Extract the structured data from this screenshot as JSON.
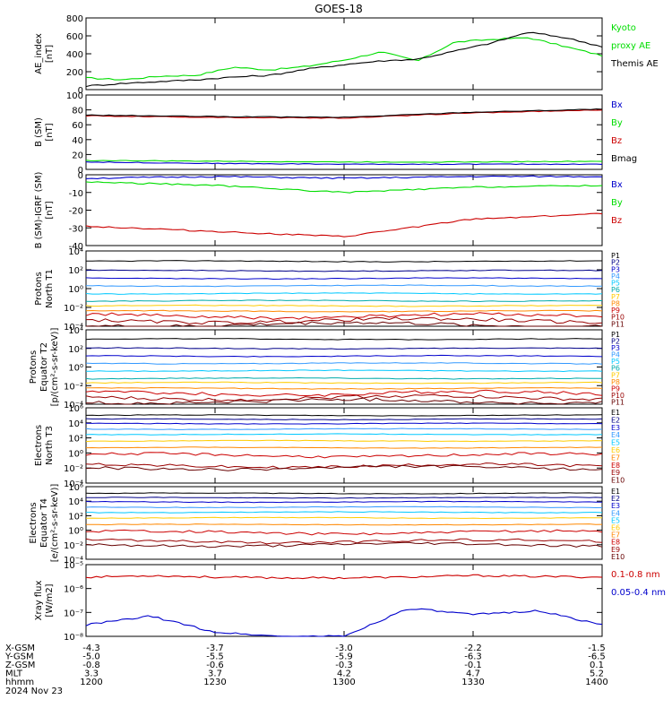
{
  "title": "GOES-18",
  "colors": {
    "black": "#000000",
    "green": "#00dd00",
    "blue": "#0000cc",
    "red": "#cc0000",
    "cyan": "#00c8ff",
    "lightblue": "#3399ff",
    "yellow": "#ffcc00",
    "orange": "#ff8800",
    "darkred": "#990000",
    "navy": "#000088",
    "teal": "#00aaaa"
  },
  "panels": [
    {
      "ylabel": [
        "AE_index",
        "[nT]"
      ],
      "ticks": [
        "800",
        "600",
        "400",
        "200",
        "0"
      ],
      "legend": [
        {
          "text": "Kyoto",
          "color": "#00dd00"
        },
        {
          "text": "proxy AE",
          "color": "#00dd00"
        },
        {
          "text": "Themis AE",
          "color": "#000000"
        }
      ]
    },
    {
      "ylabel": [
        "B (SM)",
        "[nT]"
      ],
      "ticks": [
        "100",
        "80",
        "60",
        "40",
        "20",
        "0"
      ],
      "legend": [
        {
          "text": "Bx",
          "color": "#0000cc"
        },
        {
          "text": "By",
          "color": "#00dd00"
        },
        {
          "text": "Bz",
          "color": "#cc0000"
        },
        {
          "text": "Bmag",
          "color": "#000000"
        }
      ]
    },
    {
      "ylabel": [
        "B (SM)-IGRF (SM)",
        "[nT]"
      ],
      "ticks": [
        "0",
        "-10",
        "-20",
        "-30",
        "-40"
      ],
      "legend": [
        {
          "text": "Bx",
          "color": "#0000cc"
        },
        {
          "text": "By",
          "color": "#00dd00"
        },
        {
          "text": "Bz",
          "color": "#cc0000"
        }
      ]
    },
    {
      "ylabel": [
        "Protons",
        "North T1"
      ],
      "ticks": [
        "10⁴",
        "10²",
        "10⁰",
        "10⁻²",
        "10⁻⁴"
      ],
      "legend": [
        {
          "text": "P1",
          "color": "#000000"
        },
        {
          "text": "P2",
          "color": "#000088"
        },
        {
          "text": "P3",
          "color": "#0000cc"
        },
        {
          "text": "P4",
          "color": "#3399ff"
        },
        {
          "text": "P5",
          "color": "#00c8ff"
        },
        {
          "text": "P6",
          "color": "#00aaaa"
        },
        {
          "text": "P7",
          "color": "#ffcc00"
        },
        {
          "text": "P8",
          "color": "#ff8800"
        },
        {
          "text": "P9",
          "color": "#cc0000"
        },
        {
          "text": "P10",
          "color": "#990000"
        },
        {
          "text": "P11",
          "color": "#660000"
        }
      ]
    },
    {
      "ylabel": [
        "Protons",
        "Equator T2",
        "[p/(cm²-s-sr-keV)]"
      ],
      "ticks": [
        "10⁴",
        "10²",
        "10⁰",
        "10⁻²",
        "10⁻⁴"
      ],
      "legend": [
        {
          "text": "P1",
          "color": "#000000"
        },
        {
          "text": "P2",
          "color": "#000088"
        },
        {
          "text": "P3",
          "color": "#0000cc"
        },
        {
          "text": "P4",
          "color": "#3399ff"
        },
        {
          "text": "P5",
          "color": "#00c8ff"
        },
        {
          "text": "P6",
          "color": "#00aaaa"
        },
        {
          "text": "P7",
          "color": "#ffcc00"
        },
        {
          "text": "P8",
          "color": "#ff8800"
        },
        {
          "text": "P9",
          "color": "#cc0000"
        },
        {
          "text": "P10",
          "color": "#990000"
        },
        {
          "text": "P11",
          "color": "#660000"
        }
      ]
    },
    {
      "ylabel": [
        "Electrons",
        "North T3"
      ],
      "ticks": [
        "10⁶",
        "10⁴",
        "10²",
        "10⁰",
        "10⁻²",
        "10⁻⁴"
      ],
      "legend": [
        {
          "text": "E1",
          "color": "#000000"
        },
        {
          "text": "E2",
          "color": "#000088"
        },
        {
          "text": "E3",
          "color": "#0000cc"
        },
        {
          "text": "E4",
          "color": "#3399ff"
        },
        {
          "text": "E5",
          "color": "#00c8ff"
        },
        {
          "text": "E6",
          "color": "#ffcc00"
        },
        {
          "text": "E7",
          "color": "#ff8800"
        },
        {
          "text": "E8",
          "color": "#cc0000"
        },
        {
          "text": "E9",
          "color": "#990000"
        },
        {
          "text": "E10",
          "color": "#660000"
        }
      ]
    },
    {
      "ylabel": [
        "Electrons",
        "Equator T4",
        "[e/(cm²-s-sr-keV)]"
      ],
      "ticks": [
        "10⁶",
        "10⁴",
        "10²",
        "10⁰",
        "10⁻²",
        "10⁻⁴"
      ],
      "legend": [
        {
          "text": "E1",
          "color": "#000000"
        },
        {
          "text": "E2",
          "color": "#000088"
        },
        {
          "text": "E3",
          "color": "#0000cc"
        },
        {
          "text": "E4",
          "color": "#3399ff"
        },
        {
          "text": "E5",
          "color": "#00c8ff"
        },
        {
          "text": "E6",
          "color": "#ffcc00"
        },
        {
          "text": "E7",
          "color": "#ff8800"
        },
        {
          "text": "E8",
          "color": "#cc0000"
        },
        {
          "text": "E9",
          "color": "#990000"
        },
        {
          "text": "E10",
          "color": "#660000"
        }
      ]
    },
    {
      "ylabel": [
        "Xray flux",
        "[W/m2]"
      ],
      "ticks": [
        "10⁻⁵",
        "10⁻⁶",
        "10⁻⁷",
        "10⁻⁸"
      ],
      "legend": [
        {
          "text": "0.1-0.8 nm",
          "color": "#cc0000"
        },
        {
          "text": "0.05-0.4 nm",
          "color": "#0000cc"
        }
      ]
    }
  ],
  "footer": {
    "rows": [
      {
        "label": "X-GSM",
        "values": [
          "-4.3",
          "-3.7",
          "-3.0",
          "-2.2",
          "-1.5"
        ]
      },
      {
        "label": "Y-GSM",
        "values": [
          "-5.0",
          "-5.5",
          "-5.9",
          "-6.3",
          "-6.5"
        ]
      },
      {
        "label": "Z-GSM",
        "values": [
          "-0.8",
          "-0.6",
          "-0.3",
          "-0.1",
          "0.1"
        ]
      },
      {
        "label": "MLT",
        "values": [
          "3.3",
          "3.7",
          "4.2",
          "4.7",
          "5.2"
        ]
      },
      {
        "label": "hhmm",
        "values": [
          "1200",
          "1230",
          "1300",
          "1330",
          "1400"
        ]
      }
    ],
    "date": "2024 Nov 23"
  },
  "chart_data": [
    {
      "type": "line",
      "title": "GOES-18",
      "ylabel": "AE_index [nT]",
      "ylim": [
        0,
        800
      ],
      "x": [
        "1200",
        "1210",
        "1220",
        "1230",
        "1240",
        "1250",
        "1300",
        "1310",
        "1320",
        "1330",
        "1340",
        "1345",
        "1350",
        "1355",
        "1400"
      ],
      "series": [
        {
          "name": "Kyoto proxy AE",
          "values": [
            130,
            110,
            150,
            160,
            250,
            220,
            260,
            330,
            420,
            320,
            530,
            560,
            580,
            480,
            380
          ]
        },
        {
          "name": "Themis AE",
          "values": [
            40,
            70,
            90,
            110,
            140,
            160,
            230,
            280,
            320,
            340,
            430,
            520,
            640,
            580,
            480
          ]
        }
      ]
    },
    {
      "type": "line",
      "ylabel": "B (SM) [nT]",
      "ylim": [
        0,
        100
      ],
      "x": [
        "1200",
        "1230",
        "1300",
        "1330",
        "1400"
      ],
      "series": [
        {
          "name": "Bx",
          "values": [
            10,
            8,
            7,
            7,
            7
          ]
        },
        {
          "name": "By",
          "values": [
            12,
            11,
            10,
            10,
            11
          ]
        },
        {
          "name": "Bz",
          "values": [
            72,
            70,
            69,
            76,
            80
          ]
        },
        {
          "name": "Bmag",
          "values": [
            73,
            71,
            70,
            77,
            81
          ]
        }
      ]
    },
    {
      "type": "line",
      "ylabel": "B (SM)-IGRF (SM) [nT]",
      "ylim": [
        -40,
        0
      ],
      "x": [
        "1200",
        "1230",
        "1300",
        "1330",
        "1400"
      ],
      "series": [
        {
          "name": "Bx",
          "values": [
            -2,
            -1,
            -2,
            -1,
            -1
          ]
        },
        {
          "name": "By",
          "values": [
            -4,
            -6,
            -10,
            -7,
            -6
          ]
        },
        {
          "name": "Bz",
          "values": [
            -29,
            -32,
            -35,
            -25,
            -22
          ]
        }
      ]
    },
    {
      "type": "line",
      "ylabel": "Protons North T1",
      "yscale": "log",
      "ylim": [
        0.0001,
        10000
      ],
      "series": [
        {
          "name": "P1",
          "level": 800
        },
        {
          "name": "P2",
          "level": 80
        },
        {
          "name": "P3",
          "level": 12
        },
        {
          "name": "P4",
          "level": 2
        },
        {
          "name": "P5",
          "level": 0.3
        },
        {
          "name": "P6",
          "level": 0.05
        },
        {
          "name": "P7",
          "level": 0.015
        },
        {
          "name": "P8",
          "level": 0.004
        },
        {
          "name": "P9",
          "level": 0.0012
        },
        {
          "name": "P10",
          "level": 0.0004
        },
        {
          "name": "P11",
          "level": 0.00015
        }
      ]
    },
    {
      "type": "line",
      "ylabel": "Protons Equator T2 [p/(cm²-s-sr-keV)]",
      "yscale": "log",
      "ylim": [
        0.0001,
        10000
      ],
      "series": [
        {
          "name": "P1",
          "level": 1000
        },
        {
          "name": "P2",
          "level": 100
        },
        {
          "name": "P3",
          "level": 15
        },
        {
          "name": "P4",
          "level": 2.5
        },
        {
          "name": "P5",
          "level": 0.4
        },
        {
          "name": "P6",
          "level": 0.06
        },
        {
          "name": "P7",
          "level": 0.02
        },
        {
          "name": "P8",
          "level": 0.005
        },
        {
          "name": "P9",
          "level": 0.0015
        },
        {
          "name": "P10",
          "level": 0.0005
        },
        {
          "name": "P11",
          "level": 0.0002
        }
      ]
    },
    {
      "type": "line",
      "ylabel": "Electrons North T3",
      "yscale": "log",
      "ylim": [
        0.0001,
        1000000
      ],
      "series": [
        {
          "name": "E1",
          "level": 100000
        },
        {
          "name": "E2",
          "level": 30000
        },
        {
          "name": "E3",
          "level": 8000
        },
        {
          "name": "E4",
          "level": 1500
        },
        {
          "name": "E5",
          "level": 300
        },
        {
          "name": "E6",
          "level": 40
        },
        {
          "name": "E7",
          "level": 5
        },
        {
          "name": "E8",
          "level": 0.5
        },
        {
          "name": "E9",
          "level": 0.02
        },
        {
          "name": "E10",
          "level": 0.01
        }
      ]
    },
    {
      "type": "line",
      "ylabel": "Electrons Equator T4 [e/(cm²-s-sr-keV)]",
      "yscale": "log",
      "ylim": [
        0.0001,
        1000000
      ],
      "series": [
        {
          "name": "E1",
          "level": 120000
        },
        {
          "name": "E2",
          "level": 30000
        },
        {
          "name": "E3",
          "level": 8000
        },
        {
          "name": "E4",
          "level": 1500
        },
        {
          "name": "E5",
          "level": 300
        },
        {
          "name": "E6",
          "level": 50
        },
        {
          "name": "E7",
          "level": 6
        },
        {
          "name": "E8",
          "level": 0.5
        },
        {
          "name": "E9",
          "level": 0.03
        },
        {
          "name": "E10",
          "level": 0.01
        }
      ]
    },
    {
      "type": "line",
      "ylabel": "Xray flux [W/m2]",
      "yscale": "log",
      "ylim": [
        1e-08,
        1e-05
      ],
      "x": [
        "1200",
        "1215",
        "1230",
        "1245",
        "1300",
        "1315",
        "1330",
        "1345",
        "1400"
      ],
      "series": [
        {
          "name": "0.1-0.8 nm",
          "values": [
            3e-06,
            3.5e-06,
            3e-06,
            2.8e-06,
            2.8e-06,
            3e-06,
            3.5e-06,
            3.2e-06,
            3e-06
          ]
        },
        {
          "name": "0.05-0.4 nm",
          "values": [
            3e-08,
            7e-08,
            1.5e-08,
            1e-08,
            1e-08,
            1.5e-07,
            8e-08,
            1.2e-07,
            3e-08
          ]
        }
      ]
    }
  ]
}
